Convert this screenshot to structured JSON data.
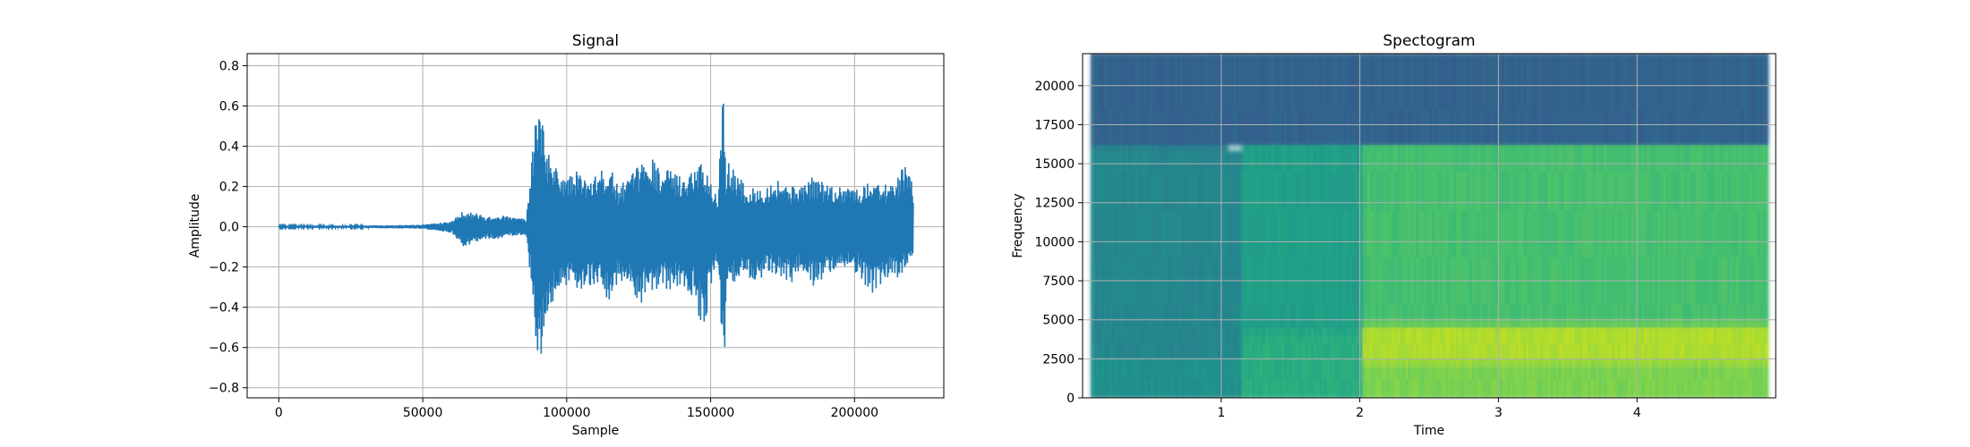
{
  "chart_data": [
    {
      "type": "line",
      "title": "Signal",
      "xlabel": "Sample",
      "ylabel": "Amplitude",
      "xlim": [
        -11000,
        231000
      ],
      "ylim": [
        -0.85,
        0.86
      ],
      "xticks": [
        0,
        50000,
        100000,
        150000,
        200000
      ],
      "xtick_labels": [
        "0",
        "50000",
        "100000",
        "150000",
        "200000"
      ],
      "yticks": [
        -0.8,
        -0.6,
        -0.4,
        -0.2,
        0.0,
        0.2,
        0.4,
        0.6,
        0.8
      ],
      "ytick_labels": [
        "−0.8",
        "−0.6",
        "−0.4",
        "−0.2",
        "0.0",
        "0.2",
        "0.4",
        "0.6",
        "0.8"
      ],
      "grid": true,
      "line_color": "#1f77b4",
      "n_samples": 220500,
      "envelope": {
        "x": [
          0,
          30000,
          50000,
          60000,
          64000,
          68000,
          72000,
          76000,
          80000,
          86000,
          89000,
          90500,
          92000,
          94000,
          97000,
          100000,
          104000,
          108000,
          112000,
          115000,
          118000,
          122000,
          126000,
          128500,
          132000,
          136000,
          140000,
          144000,
          147500,
          150000,
          152500,
          154500,
          155500,
          156500,
          160000,
          163000,
          166000,
          170000,
          174000,
          178000,
          182000,
          186000,
          190000,
          194000,
          198000,
          202000,
          206000,
          210000,
          213000,
          216000,
          218000,
          220500
        ],
        "max": [
          0.005,
          0.006,
          0.01,
          0.03,
          0.08,
          0.07,
          0.05,
          0.06,
          0.05,
          0.04,
          0.5,
          0.65,
          0.5,
          0.35,
          0.28,
          0.25,
          0.28,
          0.22,
          0.28,
          0.3,
          0.2,
          0.25,
          0.32,
          0.38,
          0.3,
          0.28,
          0.25,
          0.3,
          0.35,
          0.22,
          0.15,
          0.78,
          0.2,
          0.35,
          0.25,
          0.18,
          0.2,
          0.22,
          0.24,
          0.2,
          0.22,
          0.25,
          0.22,
          0.2,
          0.22,
          0.18,
          0.25,
          0.22,
          0.2,
          0.28,
          0.3,
          0.2
        ],
        "min": [
          -0.005,
          -0.006,
          -0.01,
          -0.03,
          -0.1,
          -0.08,
          -0.06,
          -0.06,
          -0.05,
          -0.04,
          -0.5,
          -0.76,
          -0.55,
          -0.4,
          -0.35,
          -0.3,
          -0.32,
          -0.3,
          -0.35,
          -0.38,
          -0.28,
          -0.32,
          -0.38,
          -0.35,
          -0.3,
          -0.32,
          -0.3,
          -0.35,
          -0.56,
          -0.3,
          -0.2,
          -0.78,
          -0.35,
          -0.3,
          -0.28,
          -0.25,
          -0.3,
          -0.22,
          -0.25,
          -0.28,
          -0.22,
          -0.3,
          -0.25,
          -0.22,
          -0.2,
          -0.25,
          -0.35,
          -0.28,
          -0.25,
          -0.3,
          -0.2,
          -0.18
        ]
      }
    },
    {
      "type": "heatmap",
      "title": "Spectogram",
      "xlabel": "Time",
      "ylabel": "Frequency",
      "xlim": [
        0,
        5
      ],
      "ylim": [
        0,
        22050
      ],
      "xticks": [
        1,
        2,
        3,
        4
      ],
      "xtick_labels": [
        "1",
        "2",
        "3",
        "4"
      ],
      "yticks": [
        0,
        2500,
        5000,
        7500,
        10000,
        12500,
        15000,
        17500,
        20000
      ],
      "ytick_labels": [
        "0",
        "2500",
        "5000",
        "7500",
        "10000",
        "12500",
        "15000",
        "17500",
        "20000"
      ],
      "grid": true,
      "colormap": "viridis",
      "data_start_time": 0.06,
      "regions": [
        {
          "t0": 0.06,
          "t1": 1.15,
          "f0": 0,
          "f1": 15800,
          "level": 0.46
        },
        {
          "t0": 0.06,
          "t1": 1.15,
          "f0": 0,
          "f1": 2500,
          "level": 0.5
        },
        {
          "t0": 0.06,
          "t1": 1.05,
          "f0": 15800,
          "f1": 18500,
          "level": 0.4
        },
        {
          "t0": 1.15,
          "t1": 2.02,
          "f0": 0,
          "f1": 16200,
          "level": 0.56
        },
        {
          "t0": 1.15,
          "t1": 2.02,
          "f0": 0,
          "f1": 4000,
          "level": 0.62
        },
        {
          "t0": 2.02,
          "t1": 4.95,
          "f0": 5000,
          "f1": 16200,
          "level": 0.7
        },
        {
          "t0": 2.02,
          "t1": 4.95,
          "f0": 0,
          "f1": 5000,
          "level": 0.8
        },
        {
          "t0": 2.02,
          "t1": 4.95,
          "f0": 2000,
          "f1": 4500,
          "level": 0.88
        },
        {
          "t0": 0.06,
          "t1": 4.95,
          "f0": 16200,
          "f1": 22050,
          "level": 0.32
        }
      ]
    }
  ]
}
